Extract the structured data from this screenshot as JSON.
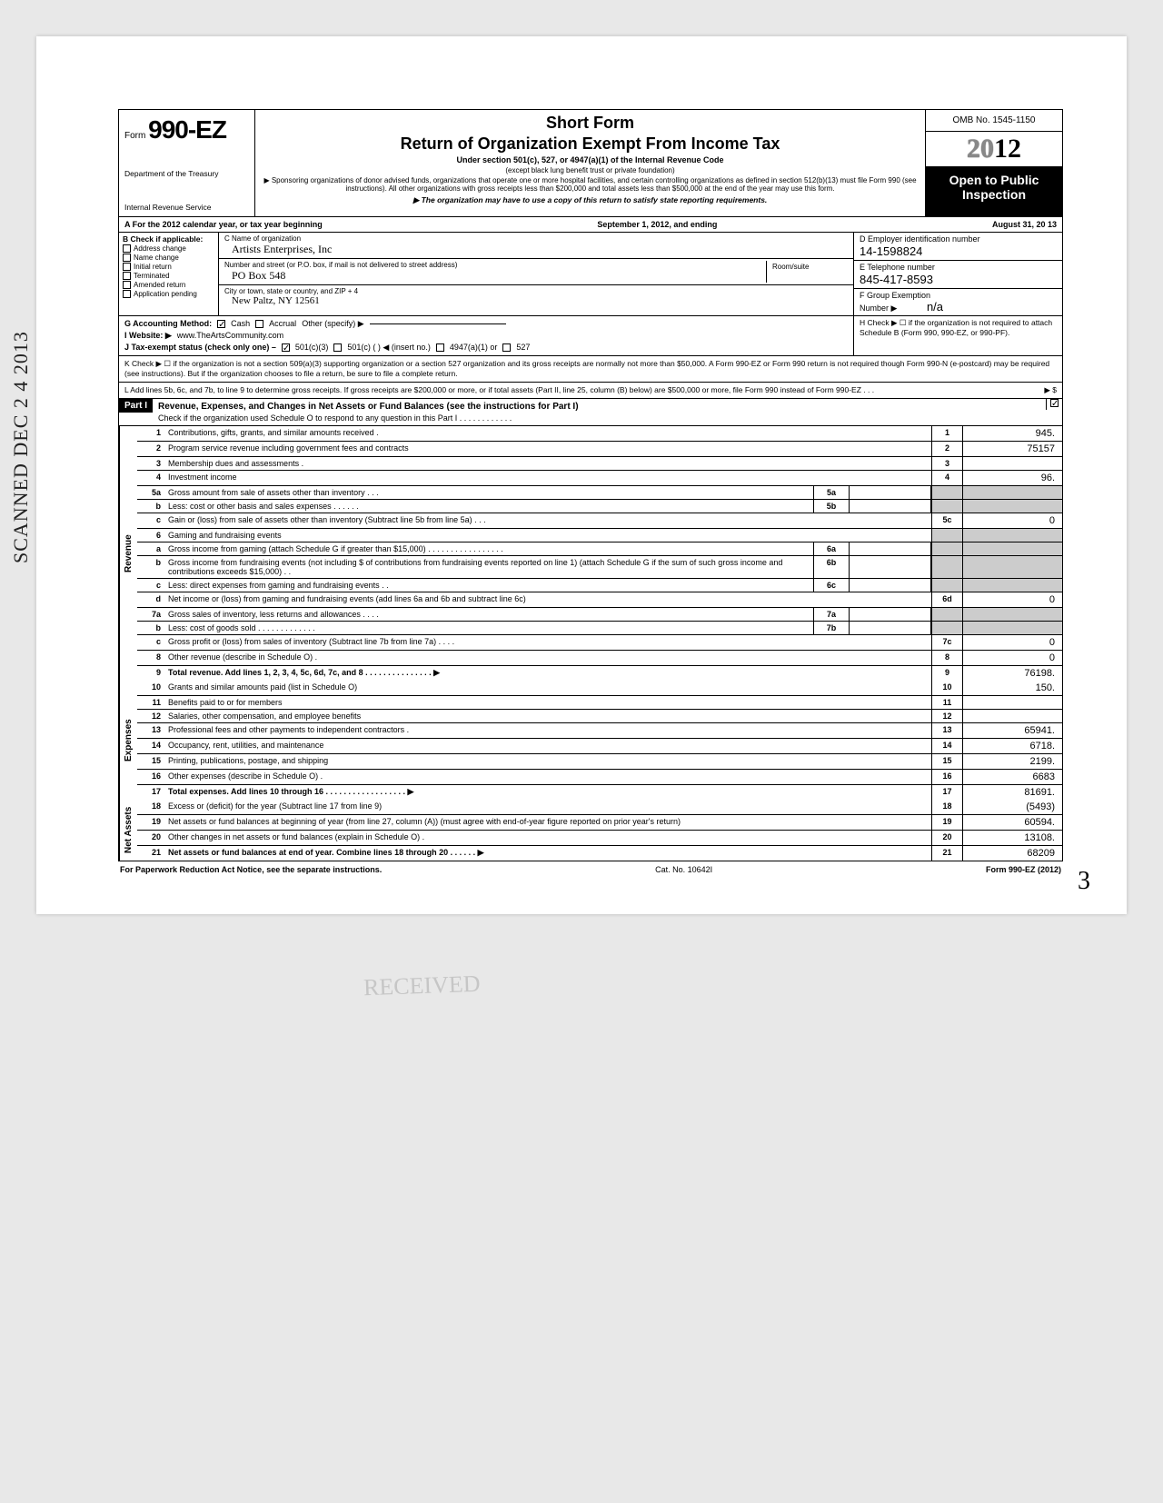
{
  "meta": {
    "omb": "OMB No. 1545-1150",
    "form_no_prefix": "Form",
    "form_no": "990-EZ",
    "year": "2012",
    "dept1": "Department of the Treasury",
    "dept2": "Internal Revenue Service",
    "short_form": "Short Form",
    "main_title": "Return of Organization Exempt From Income Tax",
    "subtitle": "Under section 501(c), 527, or 4947(a)(1) of the Internal Revenue Code",
    "sub2": "(except black lung benefit trust or private foundation)",
    "sub3": "▶ Sponsoring organizations of donor advised funds, organizations that operate one or more hospital facilities, and certain controlling organizations as defined in section 512(b)(13) must file Form 990 (see instructions). All other organizations with gross receipts less than $200,000 and total assets less than $500,000 at the end of the year may use this form.",
    "sub4": "▶ The organization may have to use a copy of this return to satisfy state reporting requirements.",
    "open_public": "Open to Public Inspection"
  },
  "line_a": {
    "left": "A  For the 2012 calendar year, or tax year beginning",
    "mid": "September 1, 2012, and ending",
    "right": "August 31, 20 13"
  },
  "col_b": {
    "header": "B  Check if applicable:",
    "items": [
      "Address change",
      "Name change",
      "Initial return",
      "Terminated",
      "Amended return",
      "Application pending"
    ]
  },
  "col_c": {
    "name_lbl": "C  Name of organization",
    "name": "Artists Enterprises, Inc",
    "street_lbl": "Number and street (or P.O. box, if mail is not delivered to street address)",
    "street": "PO Box 548",
    "room_lbl": "Room/suite",
    "city_lbl": "City or town, state or country, and ZIP + 4",
    "city": "New Paltz, NY 12561"
  },
  "col_d": {
    "ein_lbl": "D  Employer identification number",
    "ein": "14-1598824",
    "tel_lbl": "E  Telephone number",
    "tel": "845-417-8593",
    "grp_lbl": "F  Group Exemption",
    "grp_no_lbl": "Number ▶",
    "grp": "n/a"
  },
  "gij": {
    "g_lbl": "G  Accounting Method:",
    "g_cash": "Cash",
    "g_accrual": "Accrual",
    "g_other": "Other (specify) ▶",
    "i_lbl": "I   Website: ▶",
    "i_val": "www.TheArtsCommunity.com",
    "j_lbl": "J  Tax-exempt status (check only one) –",
    "j_501c3": "501(c)(3)",
    "j_501c": "501(c) (        ) ◀ (insert no.)",
    "j_4947": "4947(a)(1) or",
    "j_527": "527",
    "h_text": "H  Check ▶ ☐ if the organization is not required to attach Schedule B (Form 990, 990-EZ, or 990-PF)."
  },
  "k_line": "K  Check ▶  ☐   if the organization is not a section 509(a)(3) supporting organization or a section 527 organization and its gross receipts are normally not more than $50,000. A Form 990-EZ or Form 990 return is not required though Form 990-N (e-postcard) may be required (see instructions). But if the organization chooses to file a return, be sure to file a complete return.",
  "l_line": "L  Add lines 5b, 6c, and 7b, to line 9 to determine gross receipts. If gross receipts are $200,000 or more, or if total assets (Part II, line 25, column (B) below) are $500,000 or more, file Form 990 instead of Form 990-EZ   .   .   .",
  "l_end": "▶  $",
  "part1": {
    "label": "Part I",
    "title": "Revenue, Expenses, and Changes in Net Assets or Fund Balances (see the instructions for Part I)",
    "sub": "Check if the organization used Schedule O to respond to any question in this Part I  .  .  .  .  .  .  .  .  .  .  .  ."
  },
  "side": {
    "revenue": "Revenue",
    "expenses": "Expenses",
    "netassets": "Net Assets"
  },
  "rows": [
    {
      "n": "1",
      "d": "Contributions, gifts, grants, and similar amounts received .",
      "e": "1",
      "v": "945."
    },
    {
      "n": "2",
      "d": "Program service revenue including government fees and contracts",
      "e": "2",
      "v": "75157"
    },
    {
      "n": "3",
      "d": "Membership dues and assessments .",
      "e": "3",
      "v": ""
    },
    {
      "n": "4",
      "d": "Investment income",
      "e": "4",
      "v": "96."
    },
    {
      "n": "5a",
      "d": "Gross amount from sale of assets other than inventory  .  .  .",
      "m": "5a"
    },
    {
      "n": "b",
      "d": "Less: cost or other basis and sales expenses .  .  .  .  .  .",
      "m": "5b"
    },
    {
      "n": "c",
      "d": "Gain or (loss) from sale of assets other than inventory (Subtract line 5b from line 5a)  .  .  .",
      "e": "5c",
      "v": "0"
    },
    {
      "n": "6",
      "d": "Gaming and fundraising events"
    },
    {
      "n": "a",
      "d": "Gross income from gaming (attach Schedule G if greater than $15,000) .  .  .  .  .  .  .  .  .  .  .  .  .  .  .  .  .",
      "m": "6a"
    },
    {
      "n": "b",
      "d": "Gross income from fundraising events (not including  $                    of contributions from fundraising events reported on line 1) (attach Schedule G if the sum of such gross income and contributions exceeds $15,000) .  .",
      "m": "6b"
    },
    {
      "n": "c",
      "d": "Less: direct expenses from gaming and fundraising events  .  .",
      "m": "6c"
    },
    {
      "n": "d",
      "d": "Net income or (loss) from gaming and fundraising events (add lines 6a and 6b and subtract line 6c)",
      "e": "6d",
      "v": "0"
    },
    {
      "n": "7a",
      "d": "Gross sales of inventory, less returns and allowances .  .  .  .",
      "m": "7a"
    },
    {
      "n": "b",
      "d": "Less: cost of goods sold   .  .  .  .  .  .  .  .  .  .  .  .  .",
      "m": "7b"
    },
    {
      "n": "c",
      "d": "Gross profit or (loss) from sales of inventory (Subtract line 7b from line 7a)  .  .  .  .",
      "e": "7c",
      "v": "0"
    },
    {
      "n": "8",
      "d": "Other revenue (describe in Schedule O) .",
      "e": "8",
      "v": "0"
    },
    {
      "n": "9",
      "d": "Total revenue. Add lines 1, 2, 3, 4, 5c, 6d, 7c, and 8  .  .  .  .  .  .  .  .  .  .  .  .  .  .  .  ▶",
      "e": "9",
      "v": "76198.",
      "bold": true
    }
  ],
  "exp_rows": [
    {
      "n": "10",
      "d": "Grants and similar amounts paid (list in Schedule O)",
      "e": "10",
      "v": "150."
    },
    {
      "n": "11",
      "d": "Benefits paid to or for members",
      "e": "11",
      "v": ""
    },
    {
      "n": "12",
      "d": "Salaries, other compensation, and employee benefits",
      "e": "12",
      "v": ""
    },
    {
      "n": "13",
      "d": "Professional fees and other payments to independent contractors .",
      "e": "13",
      "v": "65941."
    },
    {
      "n": "14",
      "d": "Occupancy, rent, utilities, and maintenance",
      "e": "14",
      "v": "6718."
    },
    {
      "n": "15",
      "d": "Printing, publications, postage, and shipping",
      "e": "15",
      "v": "2199."
    },
    {
      "n": "16",
      "d": "Other expenses (describe in Schedule O) .",
      "e": "16",
      "v": "6683"
    },
    {
      "n": "17",
      "d": "Total expenses. Add lines 10 through 16  .  .  .  .  .  .  .  .  .  .  .  .  .  .  .  .  .  .  ▶",
      "e": "17",
      "v": "81691.",
      "bold": true
    }
  ],
  "net_rows": [
    {
      "n": "18",
      "d": "Excess or (deficit) for the year (Subtract line 17 from line 9)",
      "e": "18",
      "v": "(5493)"
    },
    {
      "n": "19",
      "d": "Net assets or fund balances at beginning of year (from line 27, column (A)) (must agree with end-of-year figure reported on prior year's return)",
      "e": "19",
      "v": "60594."
    },
    {
      "n": "20",
      "d": "Other changes in net assets or fund balances (explain in Schedule O) .",
      "e": "20",
      "v": "13108."
    },
    {
      "n": "21",
      "d": "Net assets or fund balances at end of year. Combine lines 18 through 20  .  .  .  .  .  .  ▶",
      "e": "21",
      "v": "68209",
      "bold": true
    }
  ],
  "footer": {
    "left": "For Paperwork Reduction Act Notice, see the separate instructions.",
    "mid": "Cat. No. 10642I",
    "right": "Form 990-EZ (2012)"
  },
  "scan_stamp": "SCANNED DEC 2 4 2013",
  "faint": "RECEIVED",
  "corner": "3"
}
